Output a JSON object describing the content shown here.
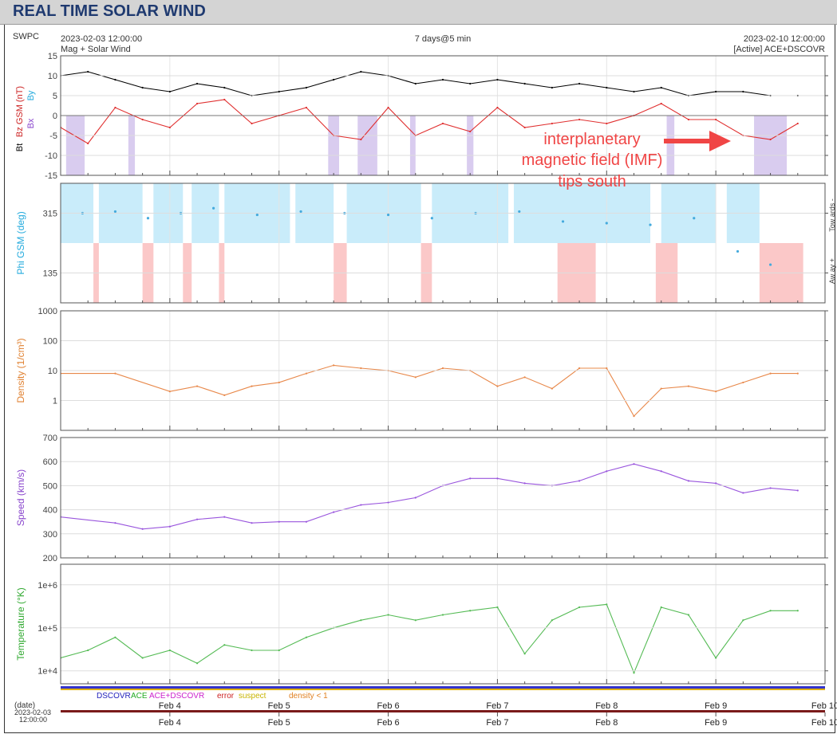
{
  "page": {
    "title": "REAL TIME SOLAR WIND"
  },
  "header": {
    "agency": "SWPC",
    "start_time": "2023-02-03 12:00:00",
    "subtitle": "Mag + Solar Wind",
    "span": "7 days@5 min",
    "end_time": "2023-02-10 12:00:00",
    "source": "[Active] ACE+DSCOVR"
  },
  "annotation": {
    "lines": [
      "interplanetary",
      "magnetic field (IMF)",
      "tips south"
    ],
    "color": "#f04545"
  },
  "legend": {
    "items": [
      {
        "label": "DSCOVR",
        "color": "#2222bb"
      },
      {
        "label": "ACE",
        "color": "#22aa22"
      },
      {
        "label": "ACE+DSCOVR",
        "color": "#cc22cc"
      },
      {
        "label": "error",
        "color": "#cc2222"
      },
      {
        "label": "suspect",
        "color": "#c8b400"
      },
      {
        "label": "density < 1",
        "color": "#e08020"
      }
    ]
  },
  "time_axis": {
    "label": "(date)",
    "start_label_date": "2023-02-03",
    "start_label_time": "12:00:00",
    "ticks": [
      "Feb 4",
      "Feb 5",
      "Feb 6",
      "Feb 7",
      "Feb 8",
      "Feb 9",
      "Feb 10"
    ]
  },
  "chart_data": [
    {
      "type": "line",
      "name": "mag",
      "ylabel_parts": [
        "Bt",
        "Bz GSM (nT)",
        "Bx",
        "By"
      ],
      "ylabel_colors": [
        "#000000",
        "#cc2222",
        "#8844cc",
        "#22aadd"
      ],
      "yticks": [
        "15",
        "10",
        "5",
        "0",
        "-5",
        "-10",
        "-15"
      ],
      "ylim": [
        -15,
        15
      ],
      "x": [
        0,
        0.25,
        0.5,
        0.75,
        1,
        1.25,
        1.5,
        1.75,
        2,
        2.25,
        2.5,
        2.75,
        3,
        3.25,
        3.5,
        3.75,
        4,
        4.25,
        4.5,
        4.75,
        5,
        5.25,
        5.5,
        5.75,
        6,
        6.25,
        6.5,
        6.75
      ],
      "series": [
        {
          "name": "Bt",
          "color": "#000000",
          "values": [
            10,
            11,
            9,
            7,
            6,
            8,
            7,
            5,
            6,
            7,
            9,
            11,
            10,
            8,
            9,
            8,
            9,
            8,
            7,
            8,
            7,
            6,
            7,
            5,
            6,
            6,
            5,
            5
          ]
        },
        {
          "name": "Bz",
          "color": "#e03030",
          "values": [
            -3,
            -7,
            2,
            -1,
            -3,
            3,
            4,
            -2,
            0,
            2,
            -5,
            -6,
            2,
            -5,
            -2,
            -4,
            2,
            -3,
            -2,
            -1,
            -2,
            0,
            3,
            -1,
            -1,
            -5,
            -6,
            -2
          ]
        }
      ],
      "south_shading": [
        [
          0.05,
          0.22
        ],
        [
          0.62,
          0.68
        ],
        [
          2.45,
          2.55
        ],
        [
          2.72,
          2.9
        ],
        [
          3.2,
          3.25
        ],
        [
          3.72,
          3.78
        ],
        [
          5.55,
          5.62
        ],
        [
          6.35,
          6.65
        ]
      ]
    },
    {
      "type": "scatter",
      "name": "phi",
      "ylabel": "Phi GSM (deg)",
      "ylabel_color": "#22aadd",
      "yticks": [
        "315",
        "135"
      ],
      "right_labels": [
        "Tow ards -",
        "Aw ay +"
      ],
      "ylim": [
        45,
        405
      ],
      "series": [
        {
          "name": "Phi",
          "color": "#44aadd",
          "x": [
            0.2,
            0.5,
            0.8,
            1.1,
            1.4,
            1.8,
            2.2,
            2.6,
            3.0,
            3.4,
            3.8,
            4.2,
            4.6,
            5.0,
            5.4,
            5.8,
            6.2,
            6.5
          ],
          "values": [
            315,
            320,
            300,
            315,
            330,
            310,
            320,
            315,
            310,
            300,
            315,
            320,
            290,
            285,
            280,
            300,
            200,
            160
          ]
        }
      ],
      "toward_bands": [
        [
          0,
          0.3
        ],
        [
          0.35,
          0.75
        ],
        [
          0.85,
          1.12
        ],
        [
          1.2,
          1.45
        ],
        [
          1.5,
          2.1
        ],
        [
          2.15,
          2.5
        ],
        [
          2.62,
          3.3
        ],
        [
          3.4,
          4.1
        ],
        [
          4.15,
          5.4
        ],
        [
          5.5,
          6.0
        ],
        [
          6.1,
          6.4
        ]
      ],
      "away_bands": [
        [
          0.3,
          0.35
        ],
        [
          0.75,
          0.85
        ],
        [
          1.12,
          1.2
        ],
        [
          1.45,
          1.5
        ],
        [
          2.5,
          2.62
        ],
        [
          3.3,
          3.4
        ],
        [
          4.55,
          4.9
        ],
        [
          5.45,
          5.65
        ],
        [
          6.4,
          6.8
        ]
      ]
    },
    {
      "type": "line",
      "name": "density",
      "ylabel": "Density (1/cm³)",
      "ylabel_color": "#e08030",
      "yscale": "log",
      "yticks": [
        "1000",
        "100",
        "10",
        "1"
      ],
      "ylim": [
        0.1,
        1000
      ],
      "x": [
        0,
        0.5,
        1,
        1.25,
        1.5,
        1.75,
        2,
        2.25,
        2.5,
        2.75,
        3,
        3.25,
        3.5,
        3.75,
        4,
        4.25,
        4.5,
        4.75,
        5,
        5.25,
        5.5,
        5.75,
        6,
        6.25,
        6.5,
        6.75
      ],
      "series": [
        {
          "name": "Density",
          "color": "#e8884a",
          "values": [
            8,
            8,
            2,
            3,
            1.5,
            3,
            4,
            8,
            15,
            12,
            10,
            6,
            12,
            10,
            3,
            6,
            2.5,
            12,
            12,
            0.3,
            2.5,
            3,
            2,
            4,
            8,
            8
          ]
        }
      ]
    },
    {
      "type": "line",
      "name": "speed",
      "ylabel": "Speed (km/s)",
      "ylabel_color": "#8844cc",
      "yticks": [
        "700",
        "600",
        "500",
        "400",
        "300",
        "200"
      ],
      "ylim": [
        200,
        700
      ],
      "x": [
        0,
        0.5,
        0.75,
        1,
        1.25,
        1.5,
        1.75,
        2,
        2.25,
        2.5,
        2.75,
        3,
        3.25,
        3.5,
        3.75,
        4,
        4.25,
        4.5,
        4.75,
        5,
        5.25,
        5.5,
        5.75,
        6,
        6.25,
        6.5,
        6.75
      ],
      "series": [
        {
          "name": "Speed",
          "color": "#9955dd",
          "values": [
            370,
            345,
            320,
            330,
            360,
            370,
            345,
            350,
            350,
            390,
            420,
            430,
            450,
            500,
            530,
            530,
            510,
            500,
            520,
            560,
            590,
            560,
            520,
            510,
            470,
            490,
            480
          ]
        }
      ]
    },
    {
      "type": "line",
      "name": "temperature",
      "ylabel": "Temperature (°K)",
      "ylabel_color": "#33aa33",
      "yscale": "log",
      "yticks": [
        "1e+6",
        "1e+5",
        "1e+4"
      ],
      "ylim": [
        5000,
        3000000
      ],
      "x": [
        0,
        0.25,
        0.5,
        0.75,
        1,
        1.25,
        1.5,
        1.75,
        2,
        2.25,
        2.5,
        2.75,
        3,
        3.25,
        3.5,
        3.75,
        4,
        4.25,
        4.5,
        4.75,
        5,
        5.25,
        5.5,
        5.75,
        6,
        6.25,
        6.5,
        6.75
      ],
      "series": [
        {
          "name": "Temperature",
          "color": "#55bb55",
          "values": [
            20000,
            30000,
            60000,
            20000,
            30000,
            15000,
            40000,
            30000,
            30000,
            60000,
            100000,
            150000,
            200000,
            150000,
            200000,
            250000,
            300000,
            25000,
            150000,
            300000,
            350000,
            9000,
            300000,
            200000,
            20000,
            150000,
            250000,
            250000
          ]
        }
      ]
    }
  ]
}
